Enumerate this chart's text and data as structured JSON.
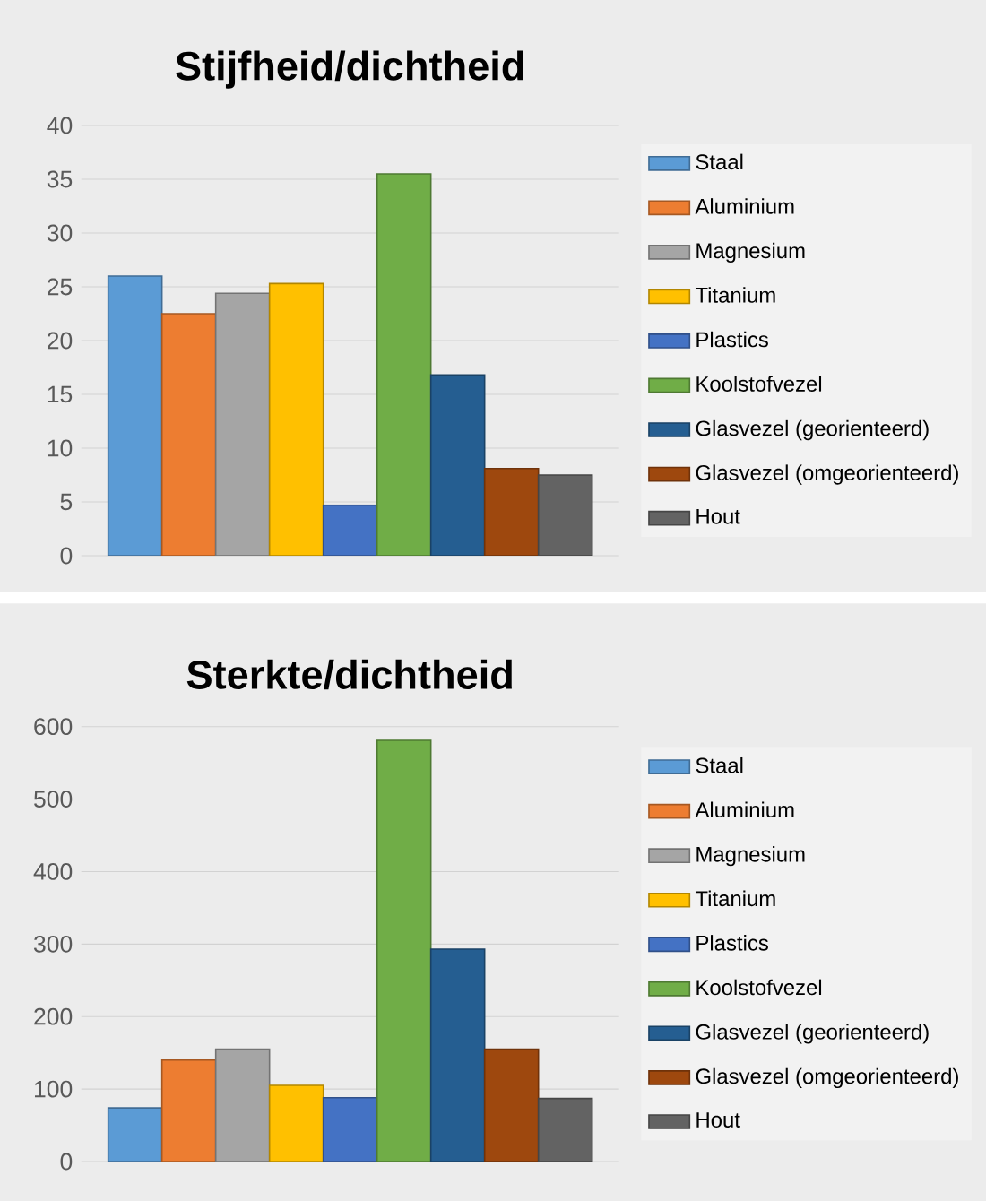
{
  "chart_data": [
    {
      "type": "bar",
      "title": "Stijfheid/dichtheid",
      "categories": [
        null
      ],
      "ylim": [
        0,
        40
      ],
      "yticks": [
        0,
        5,
        10,
        15,
        20,
        25,
        30,
        35,
        40
      ],
      "grid": "y",
      "legend": "right",
      "series": [
        {
          "name": "Staal",
          "color": "#5b9bd5",
          "values": [
            26
          ]
        },
        {
          "name": "Aluminium",
          "color": "#ed7d31",
          "values": [
            22.5
          ]
        },
        {
          "name": "Magnesium",
          "color": "#a5a5a5",
          "values": [
            24.4
          ]
        },
        {
          "name": "Titanium",
          "color": "#ffc000",
          "values": [
            25.3
          ]
        },
        {
          "name": "Plastics",
          "color": "#4472c4",
          "values": [
            4.7
          ]
        },
        {
          "name": "Koolstofvezel",
          "color": "#70ad47",
          "values": [
            35.5
          ]
        },
        {
          "name": "Glasvezel (georienteerd)",
          "color": "#255e91",
          "values": [
            16.8
          ]
        },
        {
          "name": "Glasvezel (omgeorienteerd)",
          "color": "#9e480e",
          "values": [
            8.1
          ]
        },
        {
          "name": "Hout",
          "color": "#636363",
          "values": [
            7.5
          ]
        }
      ]
    },
    {
      "type": "bar",
      "title": "Sterkte/dichtheid",
      "categories": [
        null
      ],
      "ylim": [
        0,
        600
      ],
      "yticks": [
        0,
        100,
        200,
        300,
        400,
        500,
        600
      ],
      "grid": "y",
      "legend": "right",
      "series": [
        {
          "name": "Staal",
          "color": "#5b9bd5",
          "values": [
            74
          ]
        },
        {
          "name": "Aluminium",
          "color": "#ed7d31",
          "values": [
            140
          ]
        },
        {
          "name": "Magnesium",
          "color": "#a5a5a5",
          "values": [
            155
          ]
        },
        {
          "name": "Titanium",
          "color": "#ffc000",
          "values": [
            105
          ]
        },
        {
          "name": "Plastics",
          "color": "#4472c4",
          "values": [
            88
          ]
        },
        {
          "name": "Koolstofvezel",
          "color": "#70ad47",
          "values": [
            581
          ]
        },
        {
          "name": "Glasvezel (georienteerd)",
          "color": "#255e91",
          "values": [
            293
          ]
        },
        {
          "name": "Glasvezel (omgeorienteerd)",
          "color": "#9e480e",
          "values": [
            155
          ]
        },
        {
          "name": "Hout",
          "color": "#636363",
          "values": [
            87
          ]
        }
      ]
    }
  ]
}
